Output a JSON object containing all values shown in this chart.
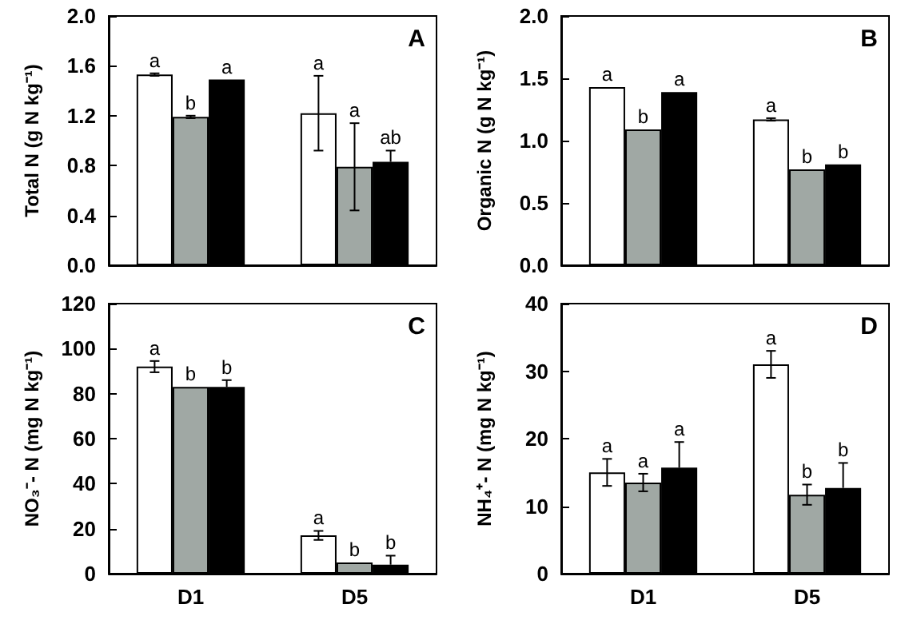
{
  "chart_data": [
    {
      "type": "bar",
      "title": "A",
      "ylabel": "Total N (g N kg⁻¹)",
      "categories": [
        null,
        null
      ],
      "ylim": [
        0,
        2
      ],
      "yticks": [
        {
          "value": 0,
          "label": "0.0"
        },
        {
          "value": 0.4,
          "label": "0.4"
        },
        {
          "value": 0.8,
          "label": "0.8"
        },
        {
          "value": 1.2,
          "label": "1.2"
        },
        {
          "value": 1.6,
          "label": "1.6"
        },
        {
          "value": 2,
          "label": "2.0"
        }
      ],
      "tick_labels": "y",
      "grid": false,
      "series": [
        {
          "color": "#ffffff",
          "values": [
            1.53,
            1.22
          ],
          "errors": [
            0.01,
            0.3
          ],
          "value_labels": [
            "a",
            "a"
          ]
        },
        {
          "color": "#a0a8a4",
          "values": [
            1.19,
            0.79
          ],
          "errors": [
            0.01,
            0.35
          ],
          "value_labels": [
            "b",
            "a"
          ]
        },
        {
          "color": "#000000",
          "values": [
            1.49,
            0.83
          ],
          "errors": [
            null,
            [
              0.83,
              0.92
            ]
          ],
          "value_labels": [
            "a",
            "ab"
          ]
        }
      ]
    },
    {
      "type": "bar",
      "title": "B",
      "ylabel": "Organic N (g N kg⁻¹)",
      "categories": [
        null,
        null
      ],
      "ylim": [
        0,
        2
      ],
      "yticks": [
        {
          "value": 0,
          "label": "0.0"
        },
        {
          "value": 0.5,
          "label": "0.5"
        },
        {
          "value": 1,
          "label": "1.0"
        },
        {
          "value": 1.5,
          "label": "1.5"
        },
        {
          "value": 2,
          "label": "2.0"
        }
      ],
      "tick_labels": "y",
      "grid": false,
      "series": [
        {
          "color": "#ffffff",
          "values": [
            1.43,
            1.17
          ],
          "errors": [
            null,
            0.01
          ],
          "value_labels": [
            "a",
            "a"
          ]
        },
        {
          "color": "#a0a8a4",
          "values": [
            1.09,
            0.77
          ],
          "errors": [
            null,
            null
          ],
          "value_labels": [
            "b",
            "b"
          ]
        },
        {
          "color": "#000000",
          "values": [
            1.39,
            0.81
          ],
          "errors": [
            null,
            null
          ],
          "value_labels": [
            "a",
            "b"
          ]
        }
      ]
    },
    {
      "type": "bar",
      "title": "C",
      "ylabel": "NO₃⁻- N (mg N kg⁻¹)",
      "categories": [
        "D1",
        "D5"
      ],
      "ylim": [
        0,
        120
      ],
      "yticks": [
        0,
        20,
        40,
        60,
        80,
        100,
        120
      ],
      "grid": false,
      "series": [
        {
          "color": "#ffffff",
          "values": [
            92,
            17
          ],
          "errors": [
            2.5,
            2
          ],
          "value_labels": [
            "a",
            "a"
          ]
        },
        {
          "color": "#a0a8a4",
          "values": [
            83,
            5
          ],
          "errors": [
            null,
            null
          ],
          "value_labels": [
            "b",
            "b"
          ]
        },
        {
          "color": "#000000",
          "values": [
            83,
            4
          ],
          "errors": [
            [
              83,
              86
            ],
            [
              4,
              8
            ]
          ],
          "value_labels": [
            "b",
            "b"
          ]
        }
      ]
    },
    {
      "type": "bar",
      "title": "D",
      "ylabel": "NH₄⁺- N (mg N kg⁻¹)",
      "categories": [
        "D1",
        "D5"
      ],
      "ylim": [
        0,
        40
      ],
      "yticks": [
        0,
        10,
        20,
        30,
        40
      ],
      "grid": false,
      "series": [
        {
          "color": "#ffffff",
          "values": [
            15,
            31
          ],
          "errors": [
            2,
            2
          ],
          "value_labels": [
            "a",
            "a"
          ]
        },
        {
          "color": "#a0a8a4",
          "values": [
            13.5,
            11.7
          ],
          "errors": [
            1.3,
            1.5
          ],
          "value_labels": [
            "a",
            "b"
          ]
        },
        {
          "color": "#000000",
          "values": [
            15.7,
            12.7
          ],
          "errors": [
            [
              15.7,
              19.5
            ],
            [
              12.7,
              16.4
            ]
          ],
          "value_labels": [
            "a",
            "b"
          ]
        }
      ]
    }
  ]
}
